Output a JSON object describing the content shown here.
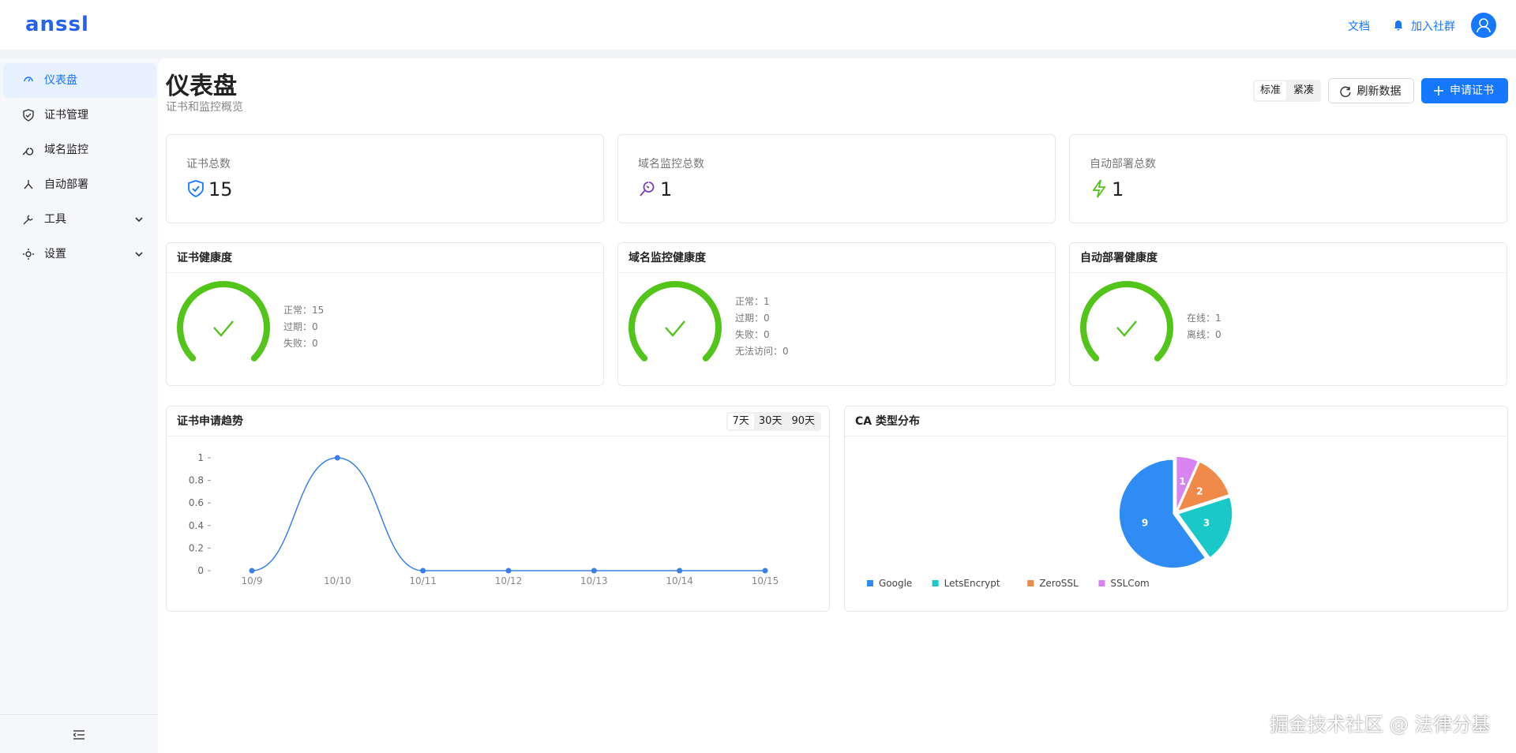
{
  "header": {
    "logo": "anssl",
    "docs": "文档",
    "community": "加入社群"
  },
  "sidebar": {
    "items": [
      "仪表盘",
      "证书管理",
      "域名监控",
      "自动部署",
      "工具",
      "设置"
    ]
  },
  "page": {
    "title": "仪表盘",
    "subtitle": "证书和监控概览",
    "density": [
      "标准",
      "紧凑"
    ],
    "refresh": "刷新数据",
    "apply": "申请证书"
  },
  "stats": [
    {
      "label": "证书总数",
      "value": 15
    },
    {
      "label": "域名监控总数",
      "value": 1
    },
    {
      "label": "自动部署总数",
      "value": 1
    }
  ],
  "health": [
    {
      "title": "证书健康度",
      "rows": [
        {
          "label": "正常：",
          "value": 15
        },
        {
          "label": "过期：",
          "value": 0
        },
        {
          "label": "失败：",
          "value": 0
        }
      ]
    },
    {
      "title": "域名监控健康度",
      "rows": [
        {
          "label": "正常：",
          "value": 1
        },
        {
          "label": "过期：",
          "value": 0
        },
        {
          "label": "失败：",
          "value": 0
        },
        {
          "label": "无法访问：",
          "value": 0
        }
      ]
    },
    {
      "title": "自动部署健康度",
      "rows": [
        {
          "label": "在线：",
          "value": 1
        },
        {
          "label": "离线：",
          "value": 0
        }
      ]
    }
  ],
  "chart_data": [
    {
      "type": "line",
      "title": "证书申请趋势",
      "ranges": [
        "7天",
        "30天",
        "90天"
      ],
      "categories": [
        "10/9",
        "10/10",
        "10/11",
        "10/12",
        "10/13",
        "10/14",
        "10/15"
      ],
      "values": [
        0,
        1,
        0,
        0,
        0,
        0,
        0
      ],
      "color": "#3a7ee8",
      "ylim": [
        0,
        1
      ],
      "yticks": [
        0,
        0.2,
        0.4,
        0.6,
        0.8,
        1
      ]
    },
    {
      "type": "pie",
      "title": "CA 类型分布",
      "categories": [
        "Google",
        "LetsEncrypt",
        "ZeroSSL",
        "SSLCom"
      ],
      "values": [
        9,
        3,
        2,
        1
      ],
      "colors": [
        "#2f8cf5",
        "#18c9c7",
        "#f08a4b",
        "#d784f2"
      ]
    }
  ],
  "watermark": "掘金技术社区 @ 法律分基"
}
